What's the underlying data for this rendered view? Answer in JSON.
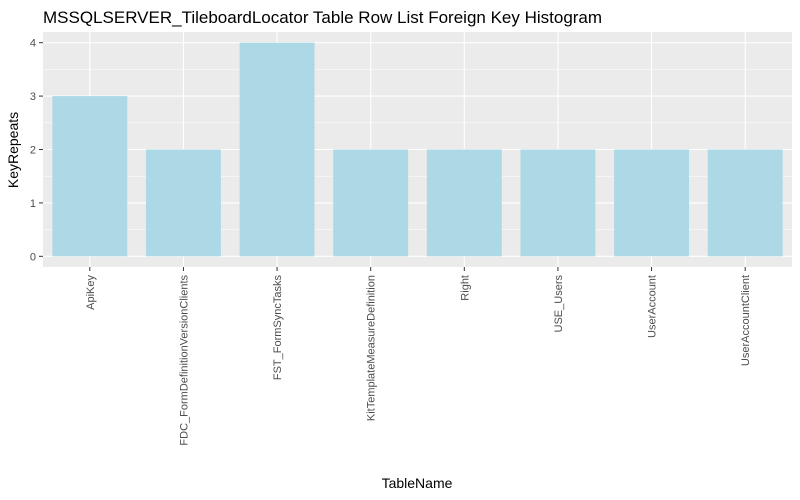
{
  "chart_data": {
    "type": "bar",
    "title": "MSSQLSERVER_TileboardLocator Table Row List Foreign Key Histogram",
    "xlabel": "TableName",
    "ylabel": "KeyRepeats",
    "categories": [
      "ApiKey",
      "FDC_FormDefinitionVersionClients",
      "FST_FormSyncTasks",
      "KitTemplateMeasureDefinition",
      "Right",
      "USE_Users",
      "UserAccount",
      "UserAccountClient"
    ],
    "values": [
      3,
      2,
      4,
      2,
      2,
      2,
      2,
      2
    ],
    "y_ticks": [
      "0",
      "1",
      "2",
      "3",
      "4"
    ],
    "ylim": [
      -0.2,
      4.2
    ],
    "grid": true,
    "colors": {
      "bar": "#add8e6",
      "panel": "#ebebeb",
      "grid": "#ffffff"
    }
  }
}
